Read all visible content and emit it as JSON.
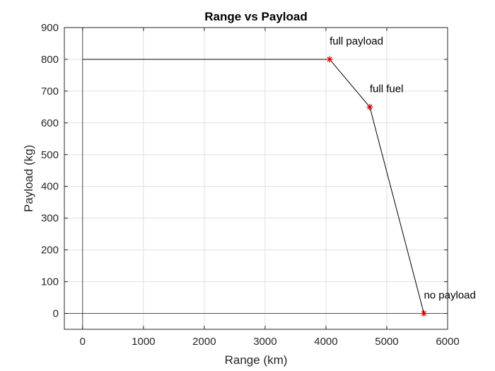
{
  "chart_data": {
    "type": "line",
    "title": "Range vs Payload",
    "xlabel": "Range (km)",
    "ylabel": "Payload (kg)",
    "xlim": [
      -300,
      6000
    ],
    "ylim": [
      -50,
      900
    ],
    "xticks": [
      0,
      1000,
      2000,
      3000,
      4000,
      5000,
      6000
    ],
    "yticks": [
      0,
      100,
      200,
      300,
      400,
      500,
      600,
      700,
      800,
      900
    ],
    "grid": true,
    "series": [
      {
        "x": [
          0,
          4060,
          4720,
          5610
        ],
        "y": [
          800,
          800,
          650,
          0
        ],
        "color": "#000000"
      }
    ],
    "markers": [
      {
        "x": 4060,
        "y": 800,
        "label": "full payload"
      },
      {
        "x": 4720,
        "y": 650,
        "label": "full fuel"
      },
      {
        "x": 5610,
        "y": 0,
        "label": "no payload"
      }
    ],
    "marker_color": "#cc0000",
    "reference_lines": [
      {
        "axis": "x",
        "value": 0
      },
      {
        "axis": "y",
        "value": 0
      }
    ]
  }
}
